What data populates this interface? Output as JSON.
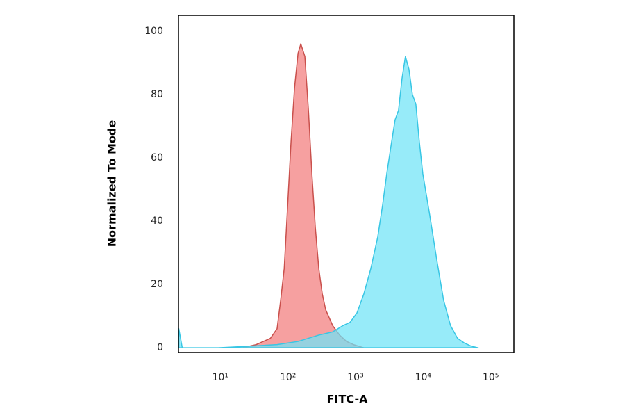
{
  "chart_data": {
    "type": "area",
    "x_label": "FITC-A",
    "y_label": "Normalized To Mode",
    "xscale": "log",
    "xlim": [
      2.4,
      220000
    ],
    "ylim": [
      -1.5,
      105
    ],
    "xticks": [
      {
        "value": 10,
        "label": "10¹"
      },
      {
        "value": 100,
        "label": "10²"
      },
      {
        "value": 1000,
        "label": "10³"
      },
      {
        "value": 10000,
        "label": "10⁴"
      },
      {
        "value": 100000,
        "label": "10⁵"
      }
    ],
    "yticks": [
      0,
      20,
      40,
      60,
      80,
      100
    ],
    "series": [
      {
        "color": "#f27c7c",
        "stroke": "#c9504c",
        "x": [
          21,
          34,
          55,
          69,
          78,
          88,
          99,
          111,
          125,
          141,
          155,
          178,
          201,
          226,
          254,
          286,
          322,
          362,
          459,
          581,
          736,
          931,
          1327
        ],
        "values": [
          0,
          1,
          3,
          6,
          15,
          25,
          45,
          65,
          82,
          93,
          96,
          92,
          75,
          55,
          38,
          25,
          17,
          12,
          7,
          4,
          2,
          1,
          0
        ]
      },
      {
        "color": "#6fe3f7",
        "stroke": "#38c6e4",
        "x": [
          2.43,
          2.73,
          9.3,
          27,
          69,
          141,
          286,
          459,
          653,
          828,
          1049,
          1327,
          1682,
          2130,
          2512,
          2897,
          3415,
          3846,
          4325,
          4864,
          5470,
          6166,
          6934,
          7798,
          8790,
          9886,
          12500,
          15850,
          20090,
          25410,
          32210,
          40740,
          51640,
          65310
        ],
        "values": [
          6,
          0,
          0,
          0.5,
          1,
          2,
          4,
          5,
          7,
          8,
          11,
          17,
          25,
          35,
          45,
          55,
          65,
          72,
          75,
          85,
          92,
          88,
          80,
          77,
          65,
          55,
          42,
          28,
          15,
          7,
          3,
          1.5,
          0.5,
          0
        ]
      }
    ]
  }
}
